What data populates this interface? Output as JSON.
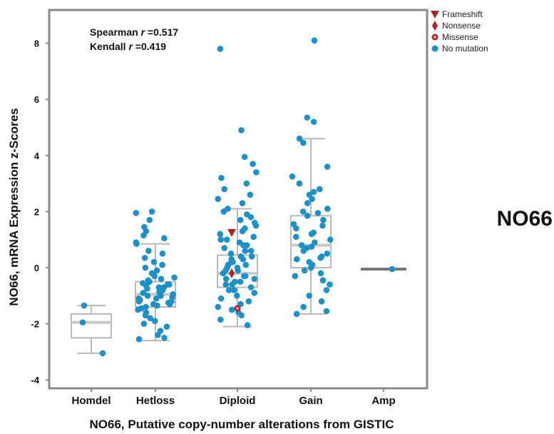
{
  "colors": {
    "point": "#1e90c8",
    "mutation": "#b22222",
    "box_stroke": "#b8b8b8",
    "median": "#c8c8c8",
    "frame": "#8a8a8a",
    "amp_line": "#777777"
  },
  "stats": {
    "spearman_prefix": "Spearman ",
    "spearman_r": "r",
    "spearman_value": " =0.517",
    "kendall_prefix": "Kendall ",
    "kendall_r": "r",
    "kendall_value": " =0.419"
  },
  "gene_label": "NO66",
  "chart_data": {
    "type": "box",
    "title": "",
    "xlabel": "NO66, Putative copy-number alterations from GISTIC",
    "ylabel": "NO66, mRNA Expression z-Scores",
    "ylim": [
      -4.1,
      9.2
    ],
    "yticks": [
      -4,
      -2,
      0,
      2,
      4,
      6,
      8
    ],
    "grid": false,
    "legend_position": "top-right",
    "legend": [
      {
        "label": "Frameshift",
        "marker": "triangle-down",
        "color": "#b22222"
      },
      {
        "label": "Nonsense",
        "marker": "diamond",
        "color": "#b22222"
      },
      {
        "label": "Missense",
        "marker": "circle-ring",
        "color": "#b22222"
      },
      {
        "label": "No mutation",
        "marker": "circle",
        "color": "#1e90c8"
      }
    ],
    "categories": [
      "Homdel",
      "Hetloss",
      "Diploid",
      "Gain",
      "Amp"
    ],
    "boxes": [
      {
        "category": "Homdel",
        "whisker_low": -3.05,
        "q1": -2.5,
        "median": -1.95,
        "q3": -1.65,
        "whisker_high": -1.35
      },
      {
        "category": "Hetloss",
        "whisker_low": -2.6,
        "q1": -1.4,
        "median": -0.95,
        "q3": -0.5,
        "whisker_high": 0.85
      },
      {
        "category": "Diploid",
        "whisker_low": -2.1,
        "q1": -0.7,
        "median": -0.2,
        "q3": 0.45,
        "whisker_high": 2.1
      },
      {
        "category": "Gain",
        "whisker_low": -1.65,
        "q1": 0.0,
        "median": 0.8,
        "q3": 1.85,
        "whisker_high": 4.6
      },
      {
        "category": "Amp",
        "whisker_low": -0.05,
        "q1": -0.05,
        "median": -0.05,
        "q3": -0.05,
        "whisker_high": -0.05
      }
    ],
    "points": {
      "Homdel": [
        -1.35,
        -1.95,
        -3.05
      ],
      "Hetloss": [
        2.0,
        1.95,
        1.7,
        1.45,
        1.3,
        1.15,
        1.05,
        0.9,
        0.85,
        0.6,
        0.5,
        0.35,
        0.2,
        0.1,
        0.0,
        -0.1,
        -0.2,
        -0.3,
        -0.35,
        -0.45,
        -0.5,
        -0.55,
        -0.6,
        -0.65,
        -0.7,
        -0.75,
        -0.8,
        -0.85,
        -0.9,
        -0.95,
        -1.0,
        -1.05,
        -1.1,
        -1.15,
        -1.2,
        -1.25,
        -1.3,
        -1.35,
        -1.4,
        -1.5,
        -1.6,
        -1.7,
        -1.8,
        -1.9,
        -2.0,
        -2.1,
        -2.25,
        -2.4,
        -2.5,
        -2.55,
        -0.7,
        -0.9,
        -1.0,
        -1.1,
        -0.6,
        -0.8,
        -1.2,
        -1.3,
        -0.4,
        -1.45
      ],
      "Diploid": [
        7.8,
        4.9,
        3.95,
        3.7,
        3.4,
        3.2,
        3.0,
        2.8,
        2.6,
        2.45,
        2.3,
        2.1,
        2.0,
        1.9,
        1.8,
        1.7,
        1.6,
        1.5,
        1.4,
        1.3,
        1.2,
        1.1,
        1.0,
        0.9,
        0.8,
        0.7,
        0.6,
        0.5,
        0.4,
        0.3,
        0.2,
        0.1,
        0.0,
        -0.1,
        -0.2,
        -0.3,
        -0.4,
        -0.5,
        -0.6,
        -0.7,
        -0.8,
        -0.9,
        -1.0,
        -1.1,
        -1.2,
        -1.3,
        -1.4,
        -1.5,
        -1.6,
        -1.7,
        -1.85,
        -2.05,
        0.1,
        0.2,
        -0.3,
        -0.5,
        0.4,
        0.6,
        -0.1,
        -0.6,
        0.0,
        -0.4,
        0.3,
        0.8,
        1.0,
        -0.8
      ],
      "Gain": [
        8.1,
        5.35,
        5.2,
        4.6,
        4.45,
        3.6,
        3.25,
        3.0,
        2.8,
        2.6,
        2.45,
        2.3,
        2.1,
        1.95,
        1.85,
        1.7,
        1.55,
        1.4,
        1.25,
        1.1,
        1.0,
        0.9,
        0.8,
        0.7,
        0.6,
        0.5,
        0.4,
        0.3,
        0.2,
        0.1,
        0.0,
        -0.1,
        -0.3,
        -0.45,
        -0.6,
        -0.8,
        -1.0,
        -1.2,
        -1.4,
        -1.55,
        -1.65,
        1.5,
        1.2,
        0.75,
        0.35,
        -0.2,
        2.0,
        2.7
      ],
      "Amp": [
        -0.05
      ]
    },
    "mutations": [
      {
        "category": "Diploid",
        "type": "Frameshift",
        "y": 1.25
      },
      {
        "category": "Diploid",
        "type": "Nonsense",
        "y": -0.2
      },
      {
        "category": "Diploid",
        "type": "Missense",
        "y": -1.45
      }
    ]
  }
}
